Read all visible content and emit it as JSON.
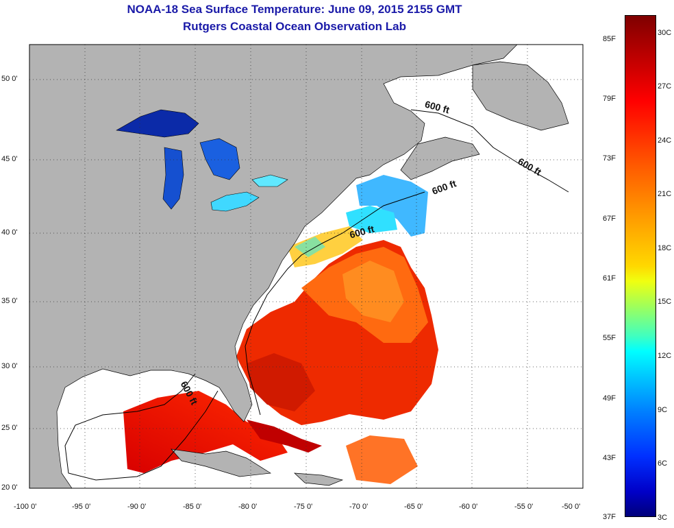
{
  "title": "NOAA-18 Sea Surface Temperature:  June 09, 2015 2155 GMT",
  "subtitle": "Rutgers Coastal Ocean Observation Lab",
  "map": {
    "lon_range": [
      -100,
      -50
    ],
    "lat_range": [
      20,
      52.5
    ],
    "grid": "dotted",
    "land_color": "#b3b3b3",
    "ocean_nodata_color": "#ffffff",
    "x_ticks": [
      "-100 0'",
      "-95 0'",
      "-90 0'",
      "-85 0'",
      "-80 0'",
      "-75 0'",
      "-70 0'",
      "-65 0'",
      "-60 0'",
      "-55 0'",
      "-50 0'"
    ],
    "y_ticks": [
      "50 0'",
      "45 0'",
      "40 0'",
      "35 0'",
      "30 0'",
      "25 0'",
      "20 0'"
    ],
    "contour_labels": [
      "600 ft",
      "600 ft",
      "600 ft",
      "600 ft",
      "600 ft"
    ]
  },
  "colorbar": {
    "fahrenheit_labels": [
      "85F",
      "79F",
      "73F",
      "67F",
      "61F",
      "55F",
      "49F",
      "43F",
      "37F"
    ],
    "celsius_labels": [
      "30C",
      "27C",
      "24C",
      "21C",
      "18C",
      "15C",
      "12C",
      "9C",
      "6C",
      "3C"
    ],
    "colors": [
      "#7f0000",
      "#ff0000",
      "#ff9a00",
      "#f0ff10",
      "#00ffff",
      "#0080ff",
      "#00007a"
    ]
  }
}
